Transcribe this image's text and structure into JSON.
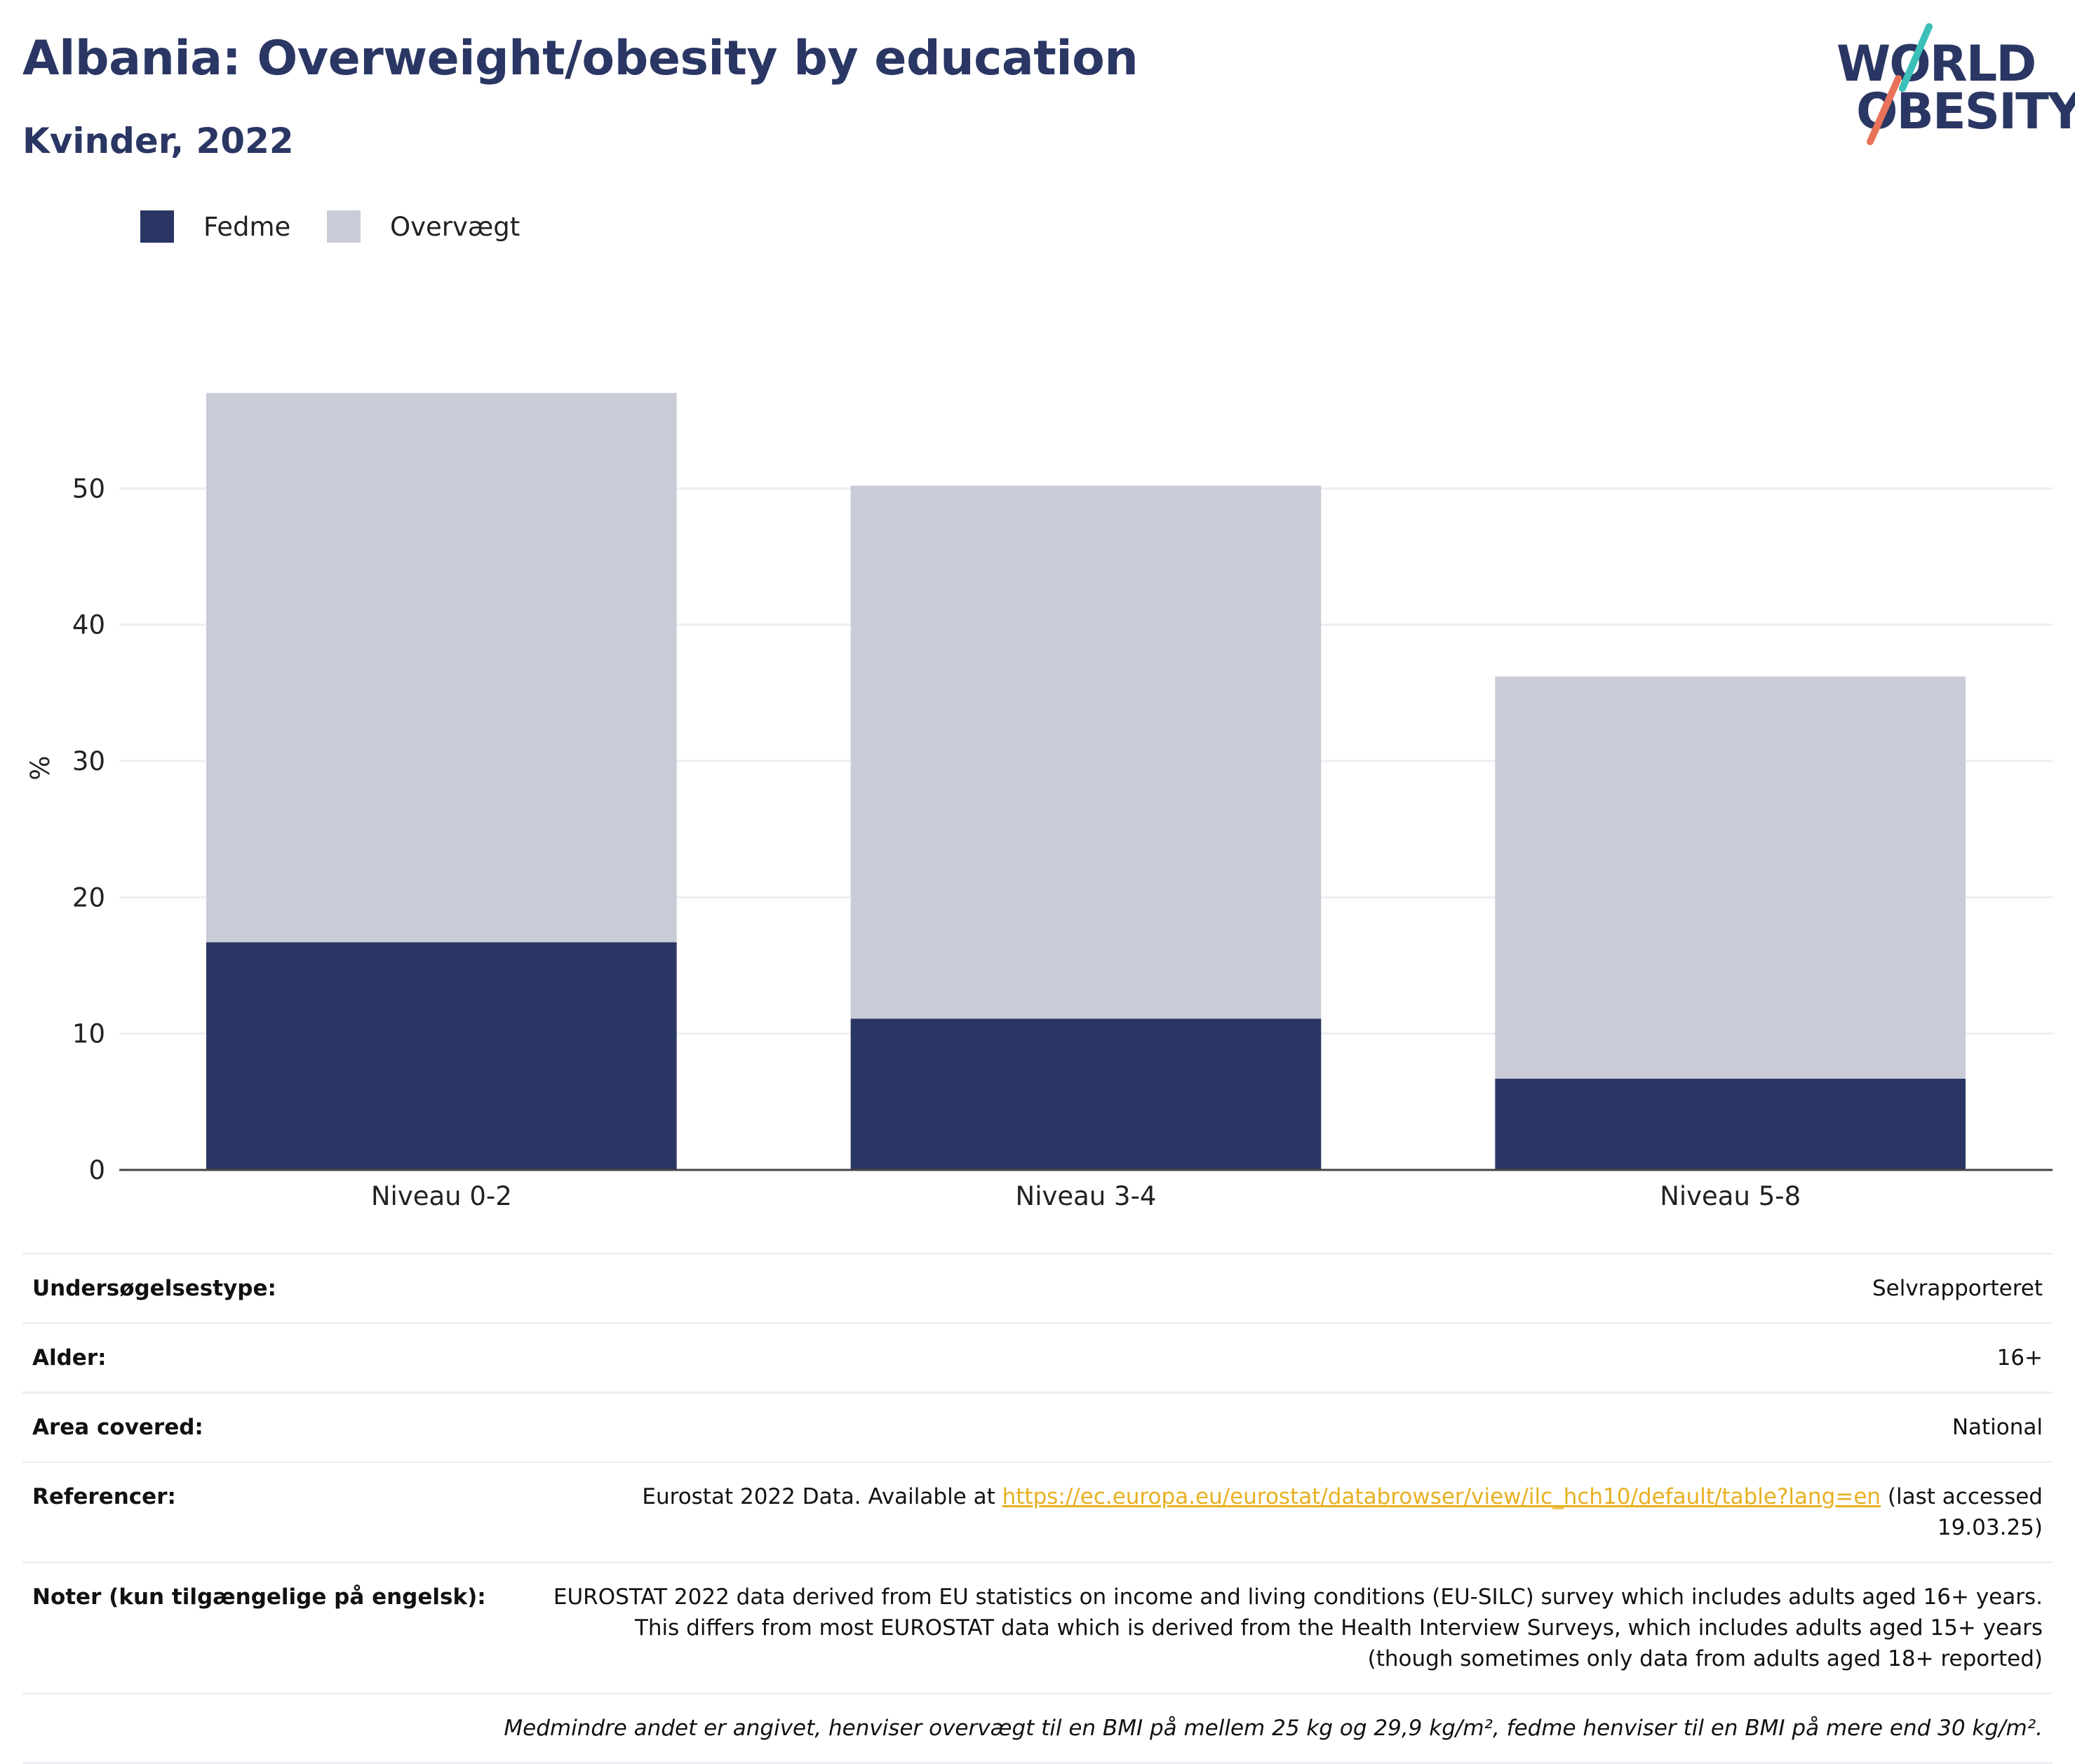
{
  "header": {
    "title": "Albania: Overweight/obesity by education",
    "subtitle": "Kvinder, 2022"
  },
  "logo": {
    "line1": "WORLD",
    "line2": "OBESITY",
    "accent_teal": "#3bbfb8",
    "accent_coral": "#e8735a"
  },
  "colors": {
    "obesity": "#2a3663",
    "overweight": "#c9ccd7",
    "gridline": "#eceef3",
    "axis": "#444444"
  },
  "legend": {
    "items": [
      {
        "label": "Fedme",
        "color": "#2a3663"
      },
      {
        "label": "Overvægt",
        "color": "#c9ccd7"
      }
    ]
  },
  "chart_data": {
    "type": "bar",
    "stacked": true,
    "categories": [
      "Niveau 0-2",
      "Niveau 3-4",
      "Niveau 5-8"
    ],
    "series": [
      {
        "name": "Fedme",
        "values": [
          16.7,
          11.1,
          6.7
        ]
      },
      {
        "name": "Overvægt",
        "values": [
          40.3,
          39.1,
          29.5
        ]
      }
    ],
    "ylabel": "%",
    "ylim": [
      0,
      60
    ],
    "yticks": [
      0,
      10,
      20,
      30,
      40,
      50
    ],
    "grid": true,
    "legend_position": "top-left"
  },
  "info": {
    "rows": [
      {
        "label": "Undersøgelsestype:",
        "value": "Selvrapporteret"
      },
      {
        "label": "Alder:",
        "value": "16+"
      },
      {
        "label": "Area covered:",
        "value": "National"
      }
    ],
    "reference": {
      "label": "Referencer:",
      "prefix": "Eurostat 2022 Data. Available at ",
      "link": "https://ec.europa.eu/eurostat/databrowser/view/ilc_hch10/default/table?lang=en",
      "suffix": " (last accessed 19.03.25)"
    },
    "notes": {
      "label": "Noter (kun tilgængelige på engelsk):",
      "value": "EUROSTAT 2022 data derived from EU statistics on income and living conditions (EU-SILC) survey which includes adults aged 16+ years. This differs from most EUROSTAT data which is derived from the Health Interview Surveys, which includes adults aged 15+ years (though sometimes only data from adults aged 18+ reported)"
    },
    "footnote": "Medmindre andet er angivet, henviser overvægt til en BMI på mellem 25 kg og 29,9 kg/m², fedme henviser til en BMI på mere end 30 kg/m²."
  }
}
